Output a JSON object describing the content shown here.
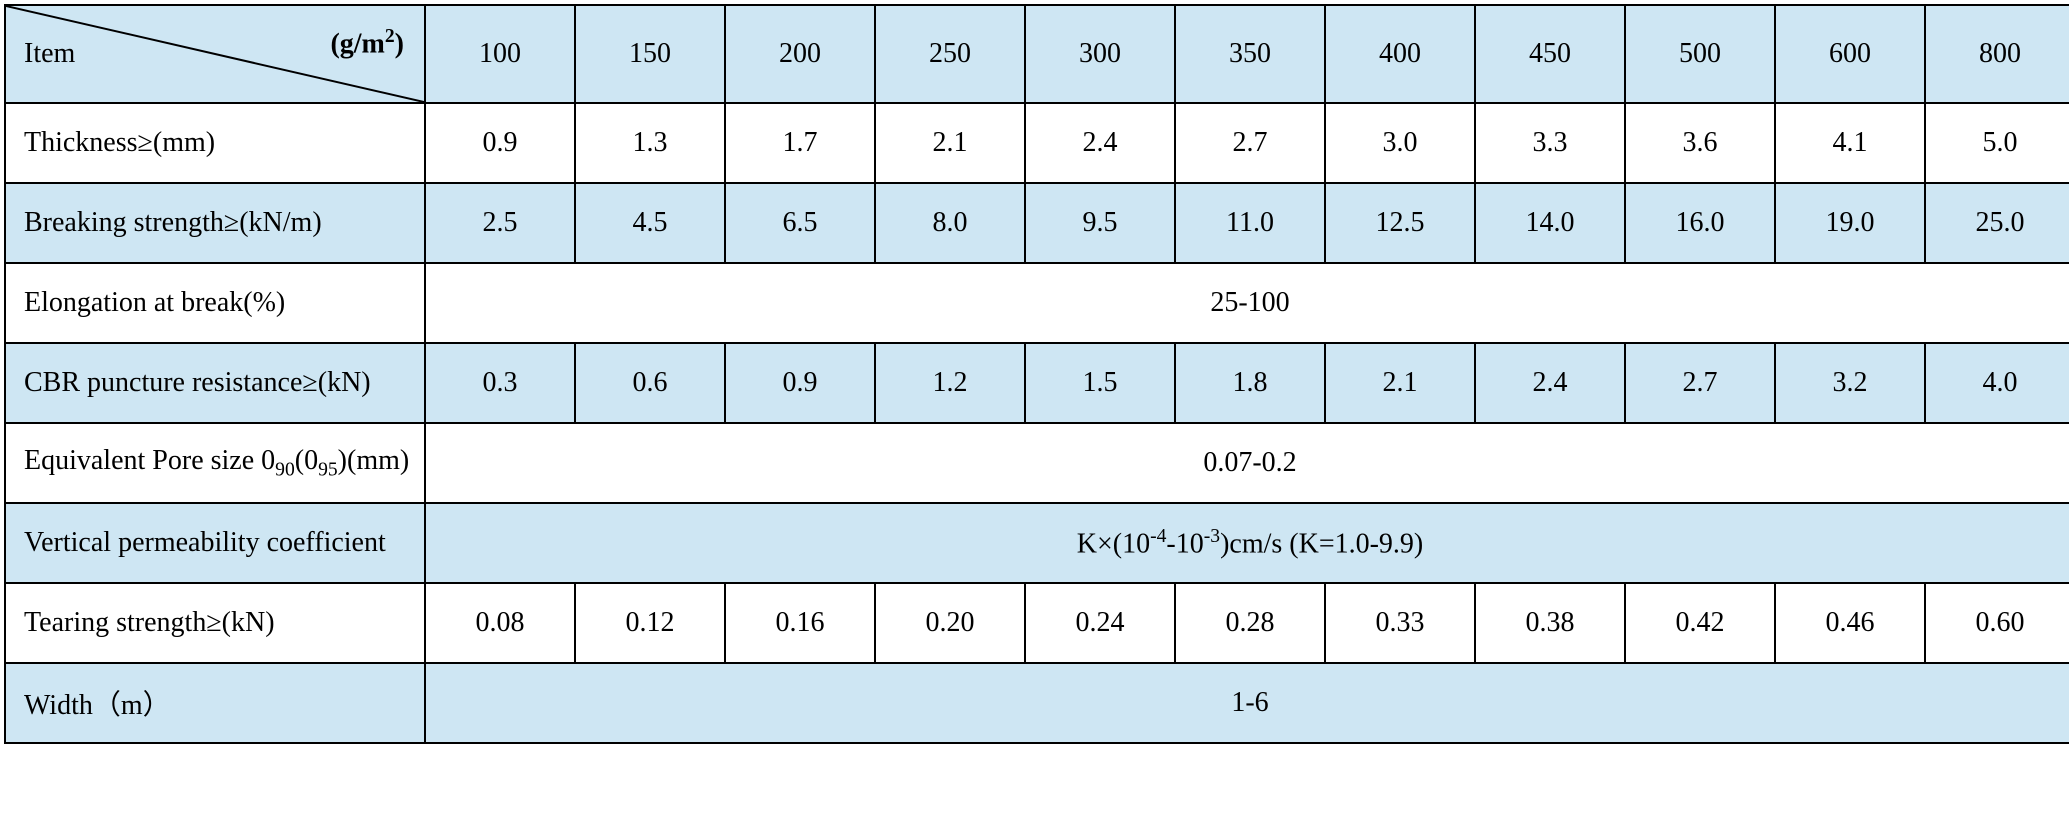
{
  "table": {
    "type": "table",
    "background_colors": {
      "blue": "#cee6f3",
      "white": "#ffffff"
    },
    "border_color": "#000000",
    "border_width": 2,
    "font_family": "Times New Roman",
    "font_size_header": 28,
    "font_size_body": 28,
    "item_column_width": 420,
    "data_column_width": 150,
    "header_row_height": 98,
    "body_row_height": 80,
    "header": {
      "item_label": "Item",
      "unit_label_prefix": "(g/m",
      "unit_label_exp": "2",
      "unit_label_suffix": ")",
      "columns": [
        "100",
        "150",
        "200",
        "250",
        "300",
        "350",
        "400",
        "450",
        "500",
        "600",
        "800"
      ]
    },
    "rows": [
      {
        "label": "Thickness≥(mm)",
        "bg": "white",
        "type": "data",
        "values": [
          "0.9",
          "1.3",
          "1.7",
          "2.1",
          "2.4",
          "2.7",
          "3.0",
          "3.3",
          "3.6",
          "4.1",
          "5.0"
        ]
      },
      {
        "label": "Breaking strength≥(kN/m)",
        "bg": "blue",
        "type": "data",
        "values": [
          "2.5",
          "4.5",
          "6.5",
          "8.0",
          "9.5",
          "11.0",
          "12.5",
          "14.0",
          "16.0",
          "19.0",
          "25.0"
        ]
      },
      {
        "label": "Elongation at break(%)",
        "bg": "white",
        "type": "spanned",
        "value": "25-100"
      },
      {
        "label": "CBR puncture resistance≥(kN)",
        "bg": "blue",
        "type": "data",
        "values": [
          "0.3",
          "0.6",
          "0.9",
          "1.2",
          "1.5",
          "1.8",
          "2.1",
          "2.4",
          "2.7",
          "3.2",
          "4.0"
        ]
      },
      {
        "label_html": true,
        "label_parts": {
          "prefix": "Equivalent Pore size 0",
          "sub1": "90",
          "mid": "(0",
          "sub2": "95",
          "suffix": ")(mm)"
        },
        "bg": "white",
        "type": "spanned",
        "value": "0.07-0.2"
      },
      {
        "label": "Vertical permeability coefficient",
        "bg": "blue",
        "type": "spanned_html",
        "value_parts": {
          "prefix": "K×(10",
          "sup1": "-4",
          "mid1": "-10",
          "sup2": "-3",
          "suffix": ")cm/s (K=1.0-9.9)"
        }
      },
      {
        "label": "Tearing strength≥(kN)",
        "bg": "white",
        "type": "data",
        "values": [
          "0.08",
          "0.12",
          "0.16",
          "0.20",
          "0.24",
          "0.28",
          "0.33",
          "0.38",
          "0.42",
          "0.46",
          "0.60"
        ]
      },
      {
        "label": "Width（m）",
        "bg": "blue",
        "type": "spanned",
        "value": "1-6"
      }
    ]
  }
}
